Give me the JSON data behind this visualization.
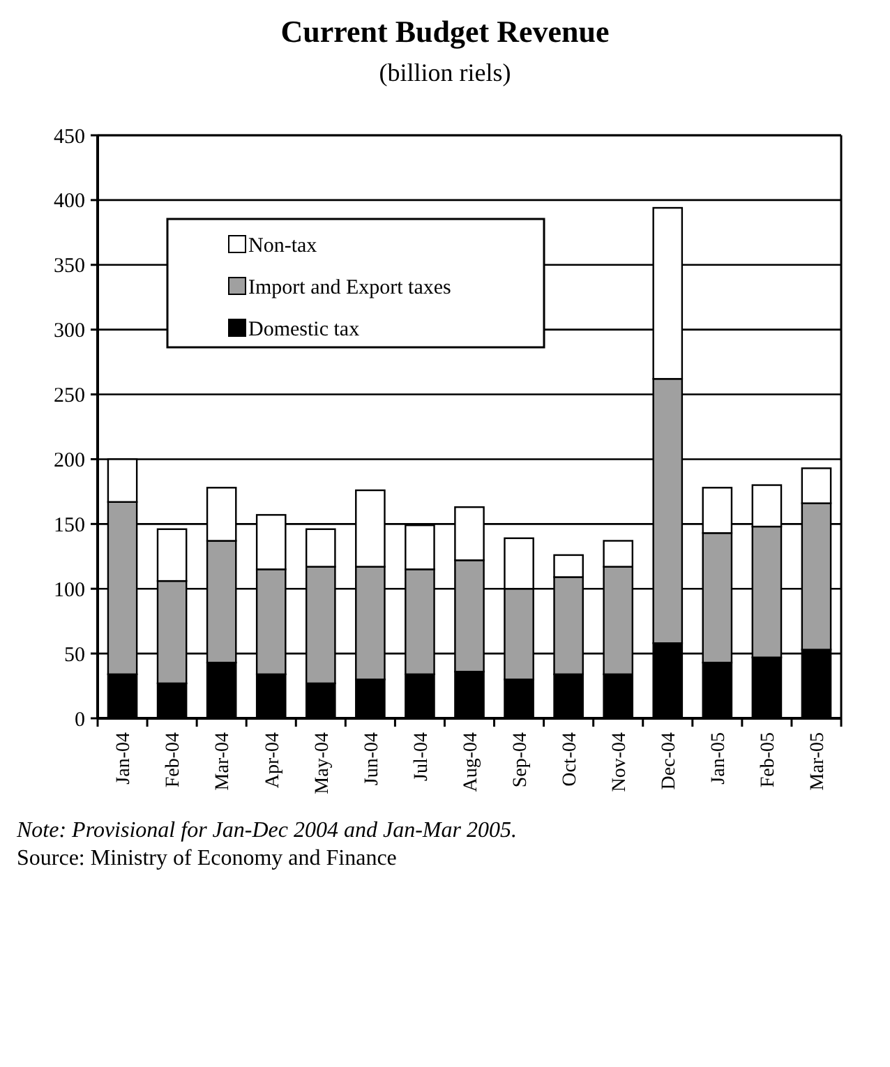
{
  "chart_data": {
    "type": "bar",
    "title": "Current Budget Revenue",
    "subtitle": "(billion riels)",
    "categories": [
      "Jan-04",
      "Feb-04",
      "Mar-04",
      "Apr-04",
      "May-04",
      "Jun-04",
      "Jul-04",
      "Aug-04",
      "Sep-04",
      "Oct-04",
      "Nov-04",
      "Dec-04",
      "Jan-05",
      "Feb-05",
      "Mar-05"
    ],
    "series": [
      {
        "name": "Domestic tax",
        "color": "#000000",
        "values": [
          34,
          27,
          43,
          34,
          27,
          30,
          34,
          36,
          30,
          34,
          34,
          58,
          43,
          47,
          53
        ]
      },
      {
        "name": "Import and Export taxes",
        "color": "#a0a0a0",
        "values": [
          133,
          79,
          94,
          81,
          90,
          87,
          81,
          86,
          70,
          75,
          83,
          204,
          100,
          101,
          113
        ]
      },
      {
        "name": "Non-tax",
        "color": "#ffffff",
        "values": [
          33,
          40,
          41,
          42,
          29,
          59,
          34,
          41,
          39,
          17,
          20,
          132,
          35,
          32,
          27
        ]
      }
    ],
    "stacked": true,
    "ylim": [
      0,
      450
    ],
    "yticks": [
      0,
      50,
      100,
      150,
      200,
      250,
      300,
      350,
      400,
      450
    ],
    "grid": "y",
    "legend": "top left",
    "annotations": [
      "Note: Provisional for Jan-Dec 2004 and Jan-Mar 2005.",
      "Source: Ministry of Economy and Finance"
    ]
  }
}
